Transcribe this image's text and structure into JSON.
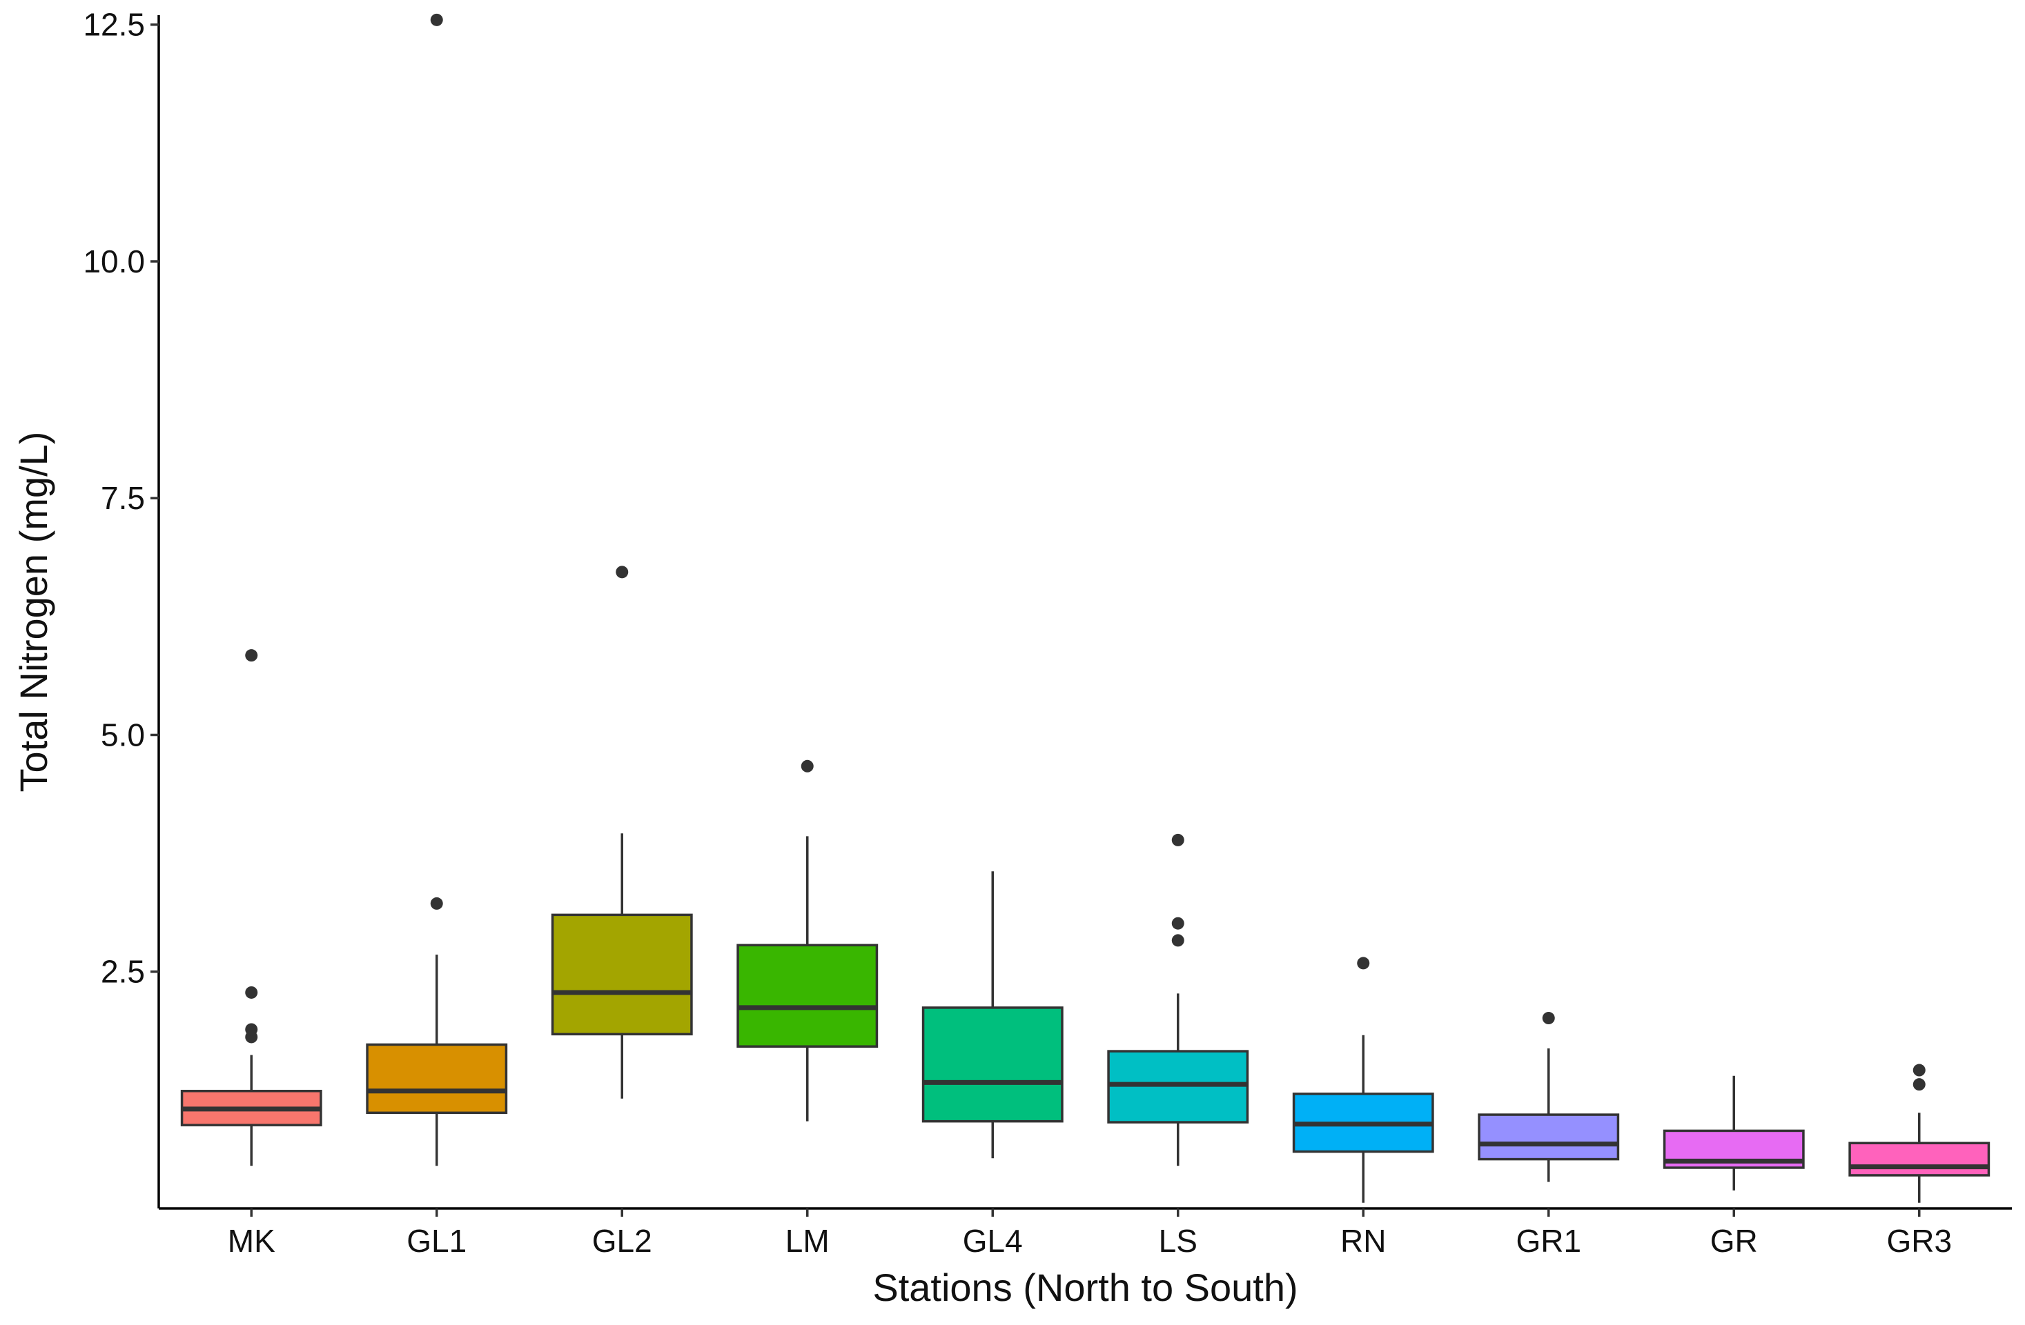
{
  "chart_data": {
    "type": "boxplot",
    "title": "",
    "xlabel": "Stations (North to South)",
    "ylabel": "Total Nitrogen (mg/L)",
    "ylim": [
      0.0,
      12.6
    ],
    "y_ticks": [
      2.5,
      5.0,
      7.5,
      10.0,
      12.5
    ],
    "y_tick_labels": [
      "2.5",
      "5.0",
      "7.5",
      "10.0",
      "12.5"
    ],
    "grid": false,
    "legend": "none",
    "categories": [
      "MK",
      "GL1",
      "GL2",
      "LM",
      "GL4",
      "LS",
      "RN",
      "GR1",
      "GR",
      "GR3"
    ],
    "series": [
      {
        "category": "MK",
        "color": "#F8766D",
        "whisker_low": 0.45,
        "q1": 0.88,
        "median": 1.05,
        "q3": 1.24,
        "whisker_high": 1.62,
        "outliers": [
          1.81,
          1.89,
          2.28,
          5.84
        ]
      },
      {
        "category": "GL1",
        "color": "#D89000",
        "whisker_low": 0.45,
        "q1": 1.01,
        "median": 1.24,
        "q3": 1.73,
        "whisker_high": 2.68,
        "outliers": [
          3.22,
          12.55
        ]
      },
      {
        "category": "GL2",
        "color": "#A3A500",
        "whisker_low": 1.16,
        "q1": 1.84,
        "median": 2.28,
        "q3": 3.1,
        "whisker_high": 3.96,
        "outliers": [
          6.72
        ]
      },
      {
        "category": "LM",
        "color": "#39B600",
        "whisker_low": 0.92,
        "q1": 1.71,
        "median": 2.12,
        "q3": 2.78,
        "whisker_high": 3.93,
        "outliers": [
          4.67
        ]
      },
      {
        "category": "GL4",
        "color": "#00BF7D",
        "whisker_low": 0.53,
        "q1": 0.92,
        "median": 1.33,
        "q3": 2.12,
        "whisker_high": 3.56,
        "outliers": []
      },
      {
        "category": "LS",
        "color": "#00BFC4",
        "whisker_low": 0.45,
        "q1": 0.91,
        "median": 1.31,
        "q3": 1.66,
        "whisker_high": 2.27,
        "outliers": [
          2.83,
          3.01,
          3.89
        ]
      },
      {
        "category": "RN",
        "color": "#00B0F6",
        "whisker_low": 0.06,
        "q1": 0.6,
        "median": 0.89,
        "q3": 1.21,
        "whisker_high": 1.83,
        "outliers": [
          2.59
        ]
      },
      {
        "category": "GR1",
        "color": "#9590FF",
        "whisker_low": 0.28,
        "q1": 0.52,
        "median": 0.68,
        "q3": 0.99,
        "whisker_high": 1.69,
        "outliers": [
          2.01
        ]
      },
      {
        "category": "GR",
        "color": "#E76BF3",
        "whisker_low": 0.19,
        "q1": 0.43,
        "median": 0.5,
        "q3": 0.82,
        "whisker_high": 1.4,
        "outliers": []
      },
      {
        "category": "GR3",
        "color": "#FF62BC",
        "whisker_low": 0.06,
        "q1": 0.35,
        "median": 0.44,
        "q3": 0.69,
        "whisker_high": 1.01,
        "outliers": [
          1.31,
          1.46
        ]
      }
    ]
  }
}
